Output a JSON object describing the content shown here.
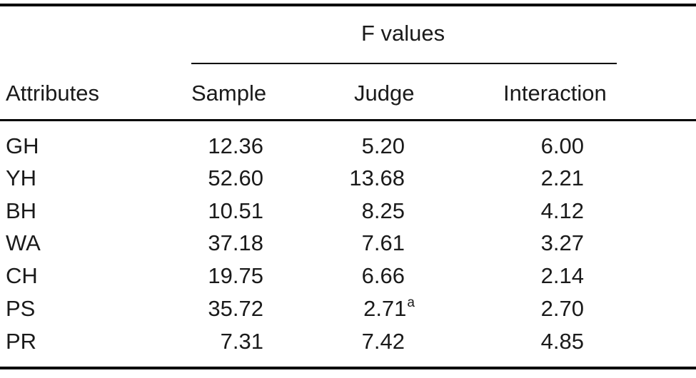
{
  "table": {
    "group_header": "F values",
    "columns": [
      "Attributes",
      "Sample",
      "Judge",
      "Interaction"
    ],
    "rows": [
      {
        "attribute": "GH",
        "sample": "12.36",
        "judge": "5.20",
        "judge_sup": "",
        "interaction": "6.00"
      },
      {
        "attribute": "YH",
        "sample": "52.60",
        "judge": "13.68",
        "judge_sup": "",
        "interaction": "2.21"
      },
      {
        "attribute": "BH",
        "sample": "10.51",
        "judge": "8.25",
        "judge_sup": "",
        "interaction": "4.12"
      },
      {
        "attribute": "WA",
        "sample": "37.18",
        "judge": "7.61",
        "judge_sup": "",
        "interaction": "3.27"
      },
      {
        "attribute": "CH",
        "sample": "19.75",
        "judge": "6.66",
        "judge_sup": "",
        "interaction": "2.14"
      },
      {
        "attribute": "PS",
        "sample": "35.72",
        "judge": "2.71",
        "judge_sup": "a",
        "interaction": "2.70"
      },
      {
        "attribute": "PR",
        "sample": "7.31",
        "judge": "7.42",
        "judge_sup": "",
        "interaction": "4.85"
      }
    ]
  }
}
